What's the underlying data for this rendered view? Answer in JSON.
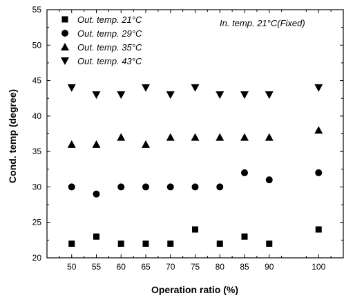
{
  "chart_data": {
    "type": "scatter",
    "xlabel": "Operation ratio (%)",
    "ylabel": "Cond. temp (degree)",
    "xlim": [
      45,
      105
    ],
    "ylim": [
      20,
      55
    ],
    "x_ticks": [
      50,
      55,
      60,
      65,
      70,
      75,
      80,
      85,
      90,
      100
    ],
    "y_ticks": [
      20,
      25,
      30,
      35,
      40,
      45,
      50,
      55
    ],
    "annotation": "In. temp. 21°C(Fixed)",
    "legend_position": "top-left",
    "grid": false,
    "series": [
      {
        "name": "Out. temp. 21°C",
        "marker": "square",
        "x": [
          50,
          55,
          60,
          65,
          70,
          75,
          80,
          85,
          90,
          100
        ],
        "y": [
          22,
          23,
          22,
          22,
          22,
          24,
          22,
          23,
          22,
          24
        ]
      },
      {
        "name": "Out. temp. 29°C",
        "marker": "circle",
        "x": [
          50,
          55,
          60,
          65,
          70,
          75,
          80,
          85,
          90,
          100
        ],
        "y": [
          30,
          29,
          30,
          30,
          30,
          30,
          30,
          32,
          31,
          32
        ]
      },
      {
        "name": "Out. temp. 35°C",
        "marker": "triangle-up",
        "x": [
          50,
          55,
          60,
          65,
          70,
          75,
          80,
          85,
          90,
          100
        ],
        "y": [
          36,
          36,
          37,
          36,
          37,
          37,
          37,
          37,
          37,
          38
        ]
      },
      {
        "name": "Out. temp. 43°C",
        "marker": "triangle-down",
        "x": [
          50,
          55,
          60,
          65,
          70,
          75,
          80,
          85,
          90,
          100
        ],
        "y": [
          44,
          43,
          43,
          44,
          43,
          44,
          43,
          43,
          43,
          44
        ]
      }
    ],
    "colors": {
      "marker": "#000000",
      "axis": "#000000"
    }
  }
}
